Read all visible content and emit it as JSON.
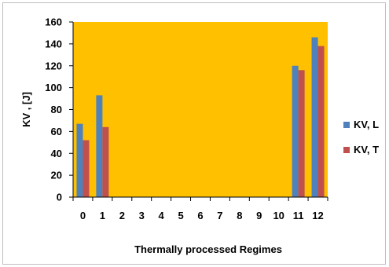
{
  "chart_data": {
    "type": "bar",
    "title": "",
    "xlabel": "Thermally processed Regimes",
    "ylabel": "KV , [J]",
    "categories": [
      "0",
      "1",
      "2",
      "3",
      "4",
      "5",
      "6",
      "7",
      "8",
      "9",
      "10",
      "11",
      "12"
    ],
    "ylim": [
      0,
      160
    ],
    "yticks": [
      0,
      20,
      40,
      60,
      80,
      100,
      120,
      140,
      160
    ],
    "grid": false,
    "legend_position": "right",
    "plot_background": "#FFC000",
    "series": [
      {
        "name": "KV, L",
        "color": "#4F81BD",
        "values": [
          67,
          93,
          null,
          null,
          null,
          null,
          null,
          null,
          null,
          null,
          null,
          120,
          146
        ]
      },
      {
        "name": "KV, T",
        "color": "#C0504D",
        "values": [
          52,
          64,
          null,
          null,
          null,
          null,
          null,
          null,
          null,
          null,
          null,
          116,
          138
        ]
      }
    ]
  }
}
